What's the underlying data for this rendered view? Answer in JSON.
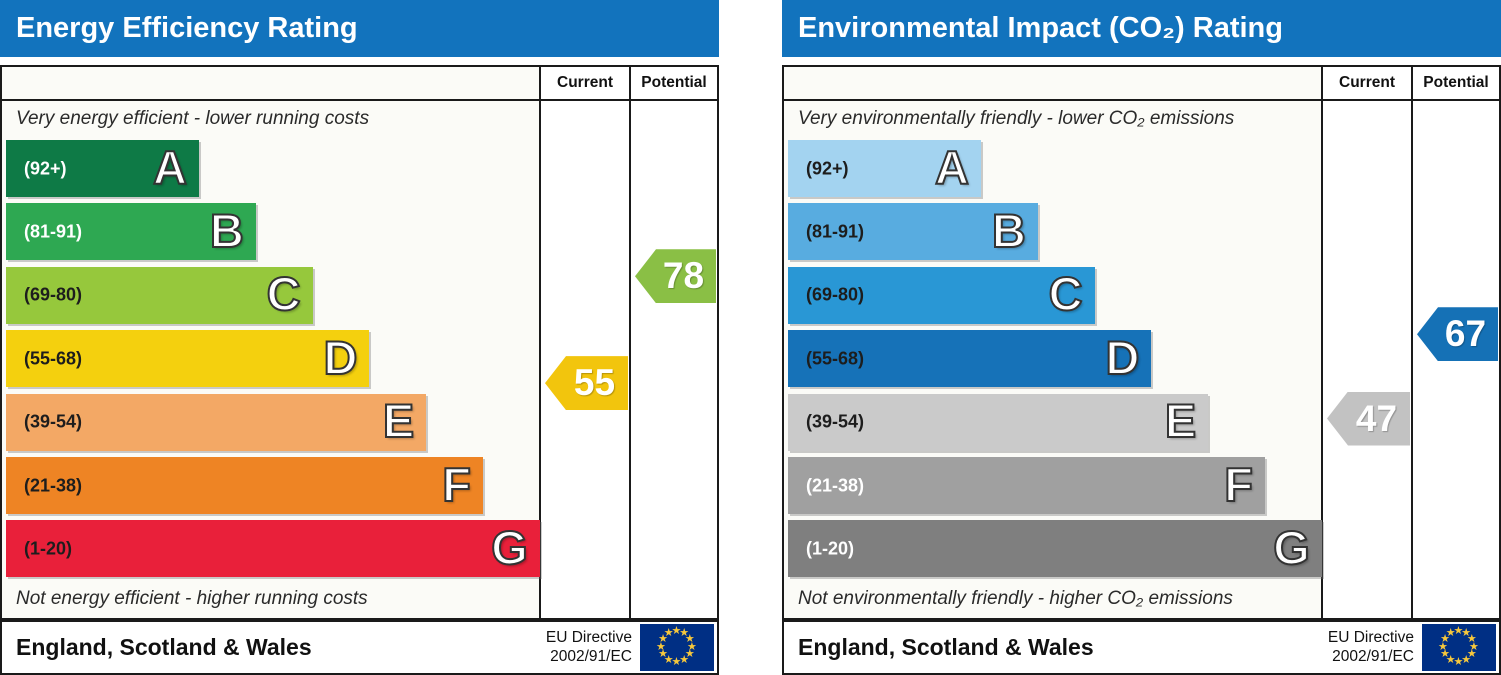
{
  "colors": {
    "header_bg": "#1273bd",
    "border": "#1a1a1a",
    "eu_flag_bg": "#002f84",
    "eu_flag_star": "#f7c83c"
  },
  "ui": {
    "columns": {
      "current": "Current",
      "potential": "Potential"
    },
    "footer": {
      "region": "England, Scotland & Wales",
      "directive_line1": "EU Directive",
      "directive_line2": "2002/91/EC",
      "flag_icon": "eu-flag-icon"
    }
  },
  "chart_data": [
    {
      "type": "bar",
      "title": "Energy Efficiency Rating",
      "top_caption": "Very energy efficient - lower running costs",
      "bottom_caption": "Not energy efficient - higher running costs",
      "categories": [
        "A",
        "B",
        "C",
        "D",
        "E",
        "F",
        "G"
      ],
      "bands": [
        {
          "letter": "A",
          "range_label": "(92+)",
          "low": 92,
          "high": 100,
          "color": "#0e7a46",
          "label_color": "#ffffff"
        },
        {
          "letter": "B",
          "range_label": "(81-91)",
          "low": 81,
          "high": 91,
          "color": "#2ea852",
          "label_color": "#ffffff"
        },
        {
          "letter": "C",
          "range_label": "(69-80)",
          "low": 69,
          "high": 80,
          "color": "#96c83c",
          "label_color": "#1d1d1d"
        },
        {
          "letter": "D",
          "range_label": "(55-68)",
          "low": 55,
          "high": 68,
          "color": "#f4d00e",
          "label_color": "#1d1d1d"
        },
        {
          "letter": "E",
          "range_label": "(39-54)",
          "low": 39,
          "high": 54,
          "color": "#f3a865",
          "label_color": "#1d1d1d"
        },
        {
          "letter": "F",
          "range_label": "(21-38)",
          "low": 21,
          "high": 38,
          "color": "#ee8424",
          "label_color": "#1d1d1d"
        },
        {
          "letter": "G",
          "range_label": "(1-20)",
          "low": 1,
          "high": 20,
          "color": "#e9203a",
          "label_color": "#1d1d1d"
        }
      ],
      "current": {
        "value": 55,
        "band": "D",
        "color": "#f2c50d",
        "text_color": "#ffffff"
      },
      "potential": {
        "value": 78,
        "band": "C",
        "color": "#8abf45",
        "text_color": "#ffffff"
      }
    },
    {
      "type": "bar",
      "title": "Environmental Impact (CO₂) Rating",
      "top_caption": "Very environmentally friendly - lower CO₂ emissions",
      "bottom_caption": "Not environmentally friendly - higher CO₂ emissions",
      "categories": [
        "A",
        "B",
        "C",
        "D",
        "E",
        "F",
        "G"
      ],
      "bands": [
        {
          "letter": "A",
          "range_label": "(92+)",
          "low": 92,
          "high": 100,
          "color": "#a3d3f0",
          "label_color": "#1d1d1d"
        },
        {
          "letter": "B",
          "range_label": "(81-91)",
          "low": 81,
          "high": 91,
          "color": "#58ace0",
          "label_color": "#1d1d1d"
        },
        {
          "letter": "C",
          "range_label": "(69-80)",
          "low": 69,
          "high": 80,
          "color": "#2997d5",
          "label_color": "#1d1d1d"
        },
        {
          "letter": "D",
          "range_label": "(55-68)",
          "low": 55,
          "high": 68,
          "color": "#1672b8",
          "label_color": "#1d1d1d"
        },
        {
          "letter": "E",
          "range_label": "(39-54)",
          "low": 39,
          "high": 54,
          "color": "#cacaca",
          "label_color": "#1d1d1d"
        },
        {
          "letter": "F",
          "range_label": "(21-38)",
          "low": 21,
          "high": 38,
          "color": "#a0a0a0",
          "label_color": "#ffffff"
        },
        {
          "letter": "G",
          "range_label": "(1-20)",
          "low": 1,
          "high": 20,
          "color": "#7f7f7f",
          "label_color": "#ffffff"
        }
      ],
      "current": {
        "value": 47,
        "band": "E",
        "color": "#c2c2c2",
        "text_color": "#ffffff"
      },
      "potential": {
        "value": 67,
        "band": "D",
        "color": "#1571b6",
        "text_color": "#ffffff"
      }
    }
  ]
}
